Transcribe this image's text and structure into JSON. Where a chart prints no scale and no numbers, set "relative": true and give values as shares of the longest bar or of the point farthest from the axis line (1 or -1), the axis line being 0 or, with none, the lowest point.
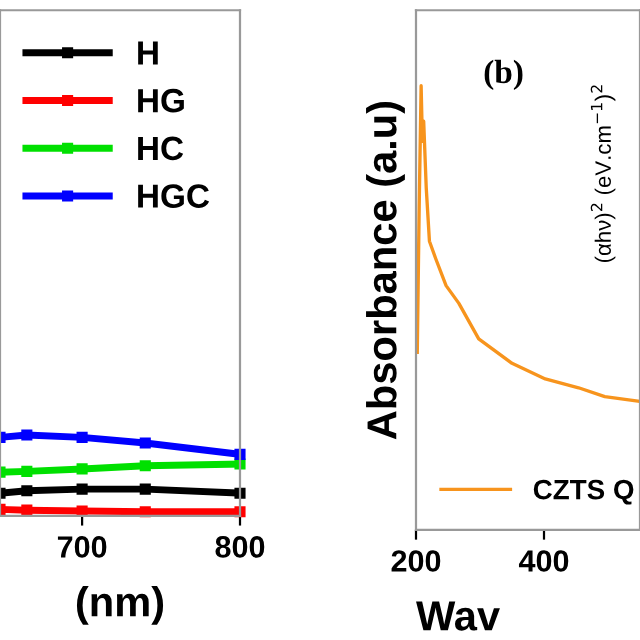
{
  "chart_data": [
    {
      "type": "line",
      "xlabel": "(nm)",
      "x": [
        648,
        665,
        700,
        740,
        800
      ],
      "xlim": [
        648,
        800
      ],
      "xticks": [
        700,
        800
      ],
      "relative": true,
      "legend": "top right",
      "marker": "square",
      "line_style": "solid",
      "series": [
        {
          "name": "H",
          "color": "#000000",
          "values": [
            0.28,
            0.31,
            0.33,
            0.33,
            0.28
          ]
        },
        {
          "name": "HG",
          "color": "#ff0000",
          "values": [
            0.08,
            0.07,
            0.06,
            0.05,
            0.05
          ]
        },
        {
          "name": "HC",
          "color": "#00e000",
          "values": [
            0.54,
            0.55,
            0.58,
            0.62,
            0.64
          ]
        },
        {
          "name": "HGC",
          "color": "#0000ff",
          "values": [
            0.97,
            1.0,
            0.97,
            0.9,
            0.76
          ]
        }
      ]
    },
    {
      "type": "line",
      "ylabel": "Absorbance (a.u)",
      "xlabel": "Wav",
      "xlim": [
        200,
        550
      ],
      "xticks": [
        200,
        400
      ],
      "relative": true,
      "legend": "bottom left",
      "line_style": "solid",
      "annotations": [
        "(b)",
        "(αhν)$^{2}$ (eV.cm$^{−1}$)$^{2}$"
      ],
      "x": [
        202,
        205,
        208,
        210,
        212,
        216,
        221,
        231,
        247,
        267,
        298,
        350,
        402,
        454,
        495,
        547
      ],
      "series": [
        {
          "name": "CZTS Q",
          "color": "#f7941d",
          "values": [
            0.4,
            0.73,
            1.0,
            0.875,
            0.92,
            0.77,
            0.65,
            0.61,
            0.55,
            0.51,
            0.43,
            0.375,
            0.34,
            0.32,
            0.3,
            0.29
          ]
        }
      ]
    }
  ]
}
